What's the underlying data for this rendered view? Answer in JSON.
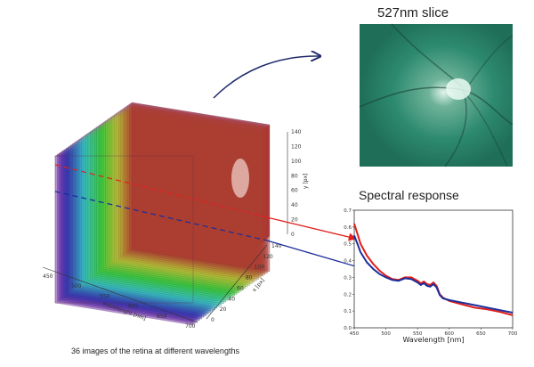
{
  "slice_panel": {
    "title": "527nm slice"
  },
  "spectral_panel": {
    "title": "Spectral response"
  },
  "caption": "36 images of the retina at different wavelengths",
  "cube": {
    "num_images": 36,
    "wavelength_axis": {
      "label": "wavelenght [nm]",
      "ticks": [
        "450",
        "500",
        "550",
        "600",
        "650",
        "700"
      ]
    },
    "x_axis": {
      "label": "x [px]",
      "ticks": [
        "0",
        "20",
        "40",
        "60",
        "80",
        "100",
        "120",
        "140"
      ]
    },
    "y_axis": {
      "label": "y [px]",
      "ticks": [
        "0",
        "20",
        "40",
        "60",
        "80",
        "100",
        "120",
        "140"
      ]
    }
  },
  "chart_data": {
    "type": "line",
    "title": "Spectral response",
    "xlabel": "Wavelength [nm]",
    "ylabel": "",
    "xlim": [
      450,
      700
    ],
    "ylim": [
      0.0,
      0.7
    ],
    "x_ticks": [
      "450",
      "500",
      "550",
      "600",
      "650",
      "700"
    ],
    "y_ticks": [
      "0.0",
      "0.1",
      "0.2",
      "0.3",
      "0.4",
      "0.5",
      "0.6",
      "0.7"
    ],
    "series": [
      {
        "color": "#e0201c",
        "points": [
          [
            450,
            0.62
          ],
          [
            455,
            0.56
          ],
          [
            460,
            0.5
          ],
          [
            470,
            0.43
          ],
          [
            480,
            0.38
          ],
          [
            490,
            0.34
          ],
          [
            500,
            0.31
          ],
          [
            510,
            0.29
          ],
          [
            520,
            0.285
          ],
          [
            530,
            0.3
          ],
          [
            540,
            0.3
          ],
          [
            550,
            0.28
          ],
          [
            555,
            0.265
          ],
          [
            560,
            0.275
          ],
          [
            565,
            0.26
          ],
          [
            570,
            0.255
          ],
          [
            575,
            0.27
          ],
          [
            580,
            0.25
          ],
          [
            585,
            0.2
          ],
          [
            590,
            0.18
          ],
          [
            600,
            0.16
          ],
          [
            620,
            0.14
          ],
          [
            640,
            0.12
          ],
          [
            660,
            0.11
          ],
          [
            680,
            0.095
          ],
          [
            700,
            0.075
          ]
        ]
      },
      {
        "color": "#1b2e9c",
        "points": [
          [
            450,
            0.55
          ],
          [
            455,
            0.5
          ],
          [
            460,
            0.45
          ],
          [
            470,
            0.39
          ],
          [
            480,
            0.35
          ],
          [
            490,
            0.32
          ],
          [
            500,
            0.3
          ],
          [
            510,
            0.285
          ],
          [
            520,
            0.28
          ],
          [
            530,
            0.295
          ],
          [
            540,
            0.29
          ],
          [
            550,
            0.27
          ],
          [
            555,
            0.255
          ],
          [
            560,
            0.265
          ],
          [
            565,
            0.25
          ],
          [
            570,
            0.245
          ],
          [
            575,
            0.26
          ],
          [
            580,
            0.24
          ],
          [
            585,
            0.195
          ],
          [
            590,
            0.175
          ],
          [
            600,
            0.165
          ],
          [
            620,
            0.15
          ],
          [
            640,
            0.135
          ],
          [
            660,
            0.12
          ],
          [
            680,
            0.105
          ],
          [
            700,
            0.09
          ]
        ]
      }
    ]
  },
  "colors": {
    "slice_fill": "#2f8a70",
    "red_line": "#e0201c",
    "blue_line": "#1b2e9c",
    "arrow": "#1f2a6b"
  }
}
